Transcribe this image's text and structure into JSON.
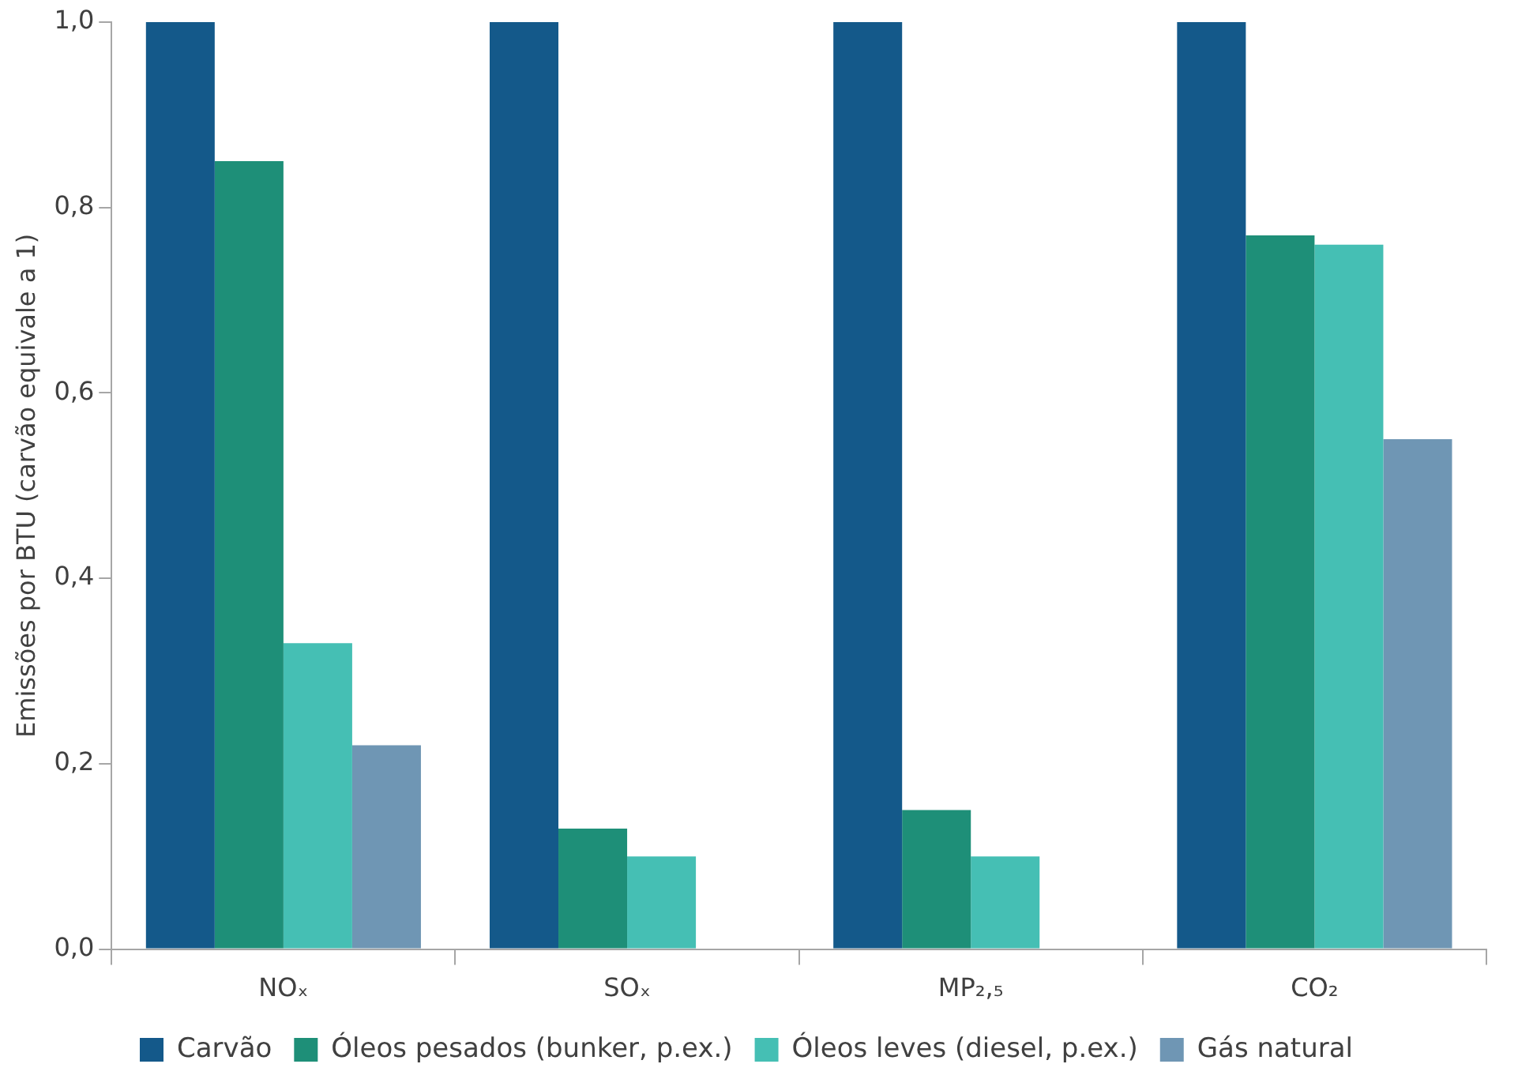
{
  "chart_data": {
    "type": "bar",
    "ylabel": "Emissões por BTU (carvão equivale a 1)",
    "categories": [
      "NOₓ",
      "SOₓ",
      "MP₂,₅",
      "CO₂"
    ],
    "series": [
      {
        "name": "Carvão",
        "color": "#14598a",
        "values": [
          1.0,
          1.0,
          1.0,
          1.0
        ]
      },
      {
        "name": "Óleos pesados (bunker, p.ex.)",
        "color": "#1e8f78",
        "values": [
          0.85,
          0.13,
          0.15,
          0.77
        ]
      },
      {
        "name": "Óleos leves (diesel, p.ex.)",
        "color": "#45bfb4",
        "values": [
          0.33,
          0.1,
          0.1,
          0.76
        ]
      },
      {
        "name": "Gás natural",
        "color": "#6f96b4",
        "values": [
          0.22,
          null,
          null,
          0.55
        ]
      }
    ],
    "ylim": [
      0,
      1
    ],
    "yticks": [
      {
        "value": 0,
        "label": "0,0"
      },
      {
        "value": 0.2,
        "label": "0,2"
      },
      {
        "value": 0.4,
        "label": "0,4"
      },
      {
        "value": 0.6,
        "label": "0,6"
      },
      {
        "value": 0.8,
        "label": "0,8"
      },
      {
        "value": 1,
        "label": "1,0"
      }
    ],
    "grid": false,
    "legend": "bottom"
  }
}
